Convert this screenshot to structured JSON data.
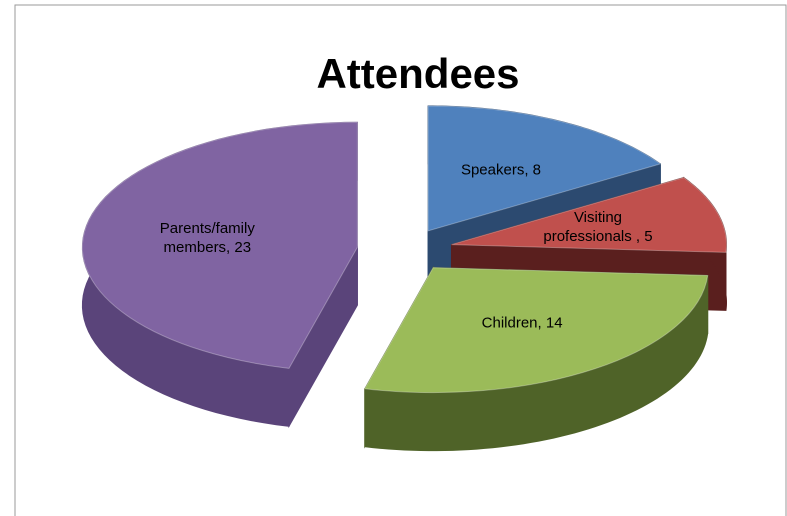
{
  "chart_data": {
    "type": "pie",
    "title": "Attendees",
    "categories": null,
    "values": [
      8,
      5,
      14,
      23
    ],
    "value_labels": [
      "Speakers, 8",
      "Visiting professionals , 5",
      "Children, 14",
      "Parents/family members, 23"
    ],
    "colors": [
      "#4f81bd",
      "#c0504d",
      "#9bbb59",
      "#8064a2"
    ],
    "side_colors": [
      "#2c4a70",
      "#5a1f1e",
      "#4f6328",
      "#5a447a"
    ]
  }
}
